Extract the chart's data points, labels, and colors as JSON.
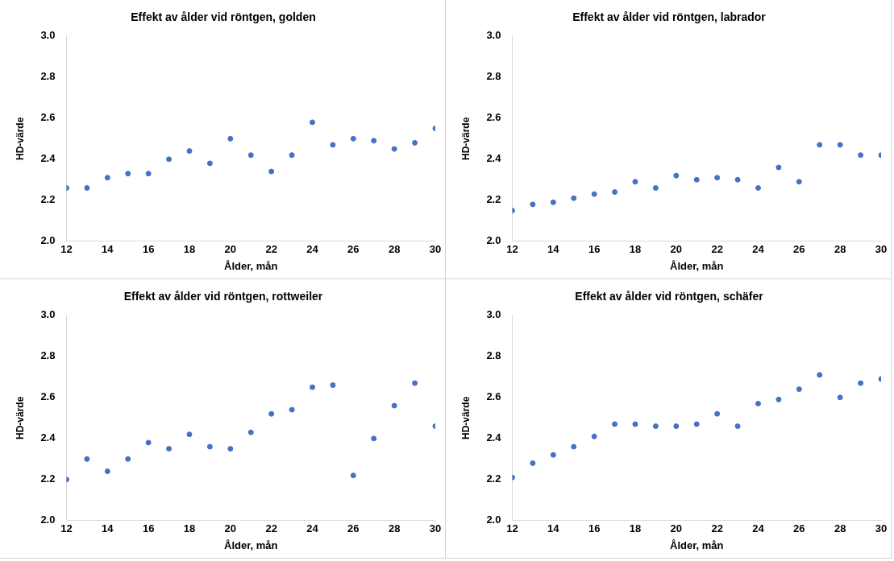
{
  "chart_data": [
    {
      "type": "scatter",
      "title": "Effekt av ålder vid röntgen, golden",
      "xlabel": "Ålder, mån",
      "ylabel": "HD-värde",
      "x": [
        12,
        13,
        14,
        15,
        16,
        17,
        18,
        19,
        20,
        21,
        22,
        23,
        24,
        25,
        26,
        27,
        28,
        29,
        30
      ],
      "series": [
        {
          "color": "#4472c4",
          "values": [
            2.26,
            2.26,
            2.31,
            2.33,
            2.33,
            2.4,
            2.44,
            2.38,
            2.5,
            2.42,
            2.34,
            2.42,
            2.58,
            2.47,
            2.5,
            2.49,
            2.45,
            2.48,
            2.55
          ]
        }
      ],
      "xlim": [
        12,
        30
      ],
      "xticks": [
        12,
        14,
        16,
        18,
        20,
        22,
        24,
        26,
        28,
        30
      ],
      "ylim": [
        2.0,
        3.0
      ],
      "yticks": [
        {
          "value": 2,
          "label": "2.0"
        },
        {
          "value": 2.2,
          "label": "2.2"
        },
        {
          "value": 2.4,
          "label": "2.4"
        },
        {
          "value": 2.6,
          "label": "2.6"
        },
        {
          "value": 2.8,
          "label": "2.8"
        },
        {
          "value": 3,
          "label": "3.0"
        }
      ],
      "grid": false,
      "legend": false,
      "marker": "circle"
    },
    {
      "type": "scatter",
      "title": "Effekt av ålder vid röntgen, labrador",
      "xlabel": "Ålder, mån",
      "ylabel": "HD-värde",
      "x": [
        12,
        13,
        14,
        15,
        16,
        17,
        18,
        19,
        20,
        21,
        22,
        23,
        24,
        25,
        26,
        27,
        28,
        29,
        30
      ],
      "series": [
        {
          "color": "#4472c4",
          "values": [
            2.15,
            2.18,
            2.19,
            2.21,
            2.23,
            2.24,
            2.29,
            2.26,
            2.32,
            2.3,
            2.31,
            2.3,
            2.26,
            2.36,
            2.29,
            2.47,
            2.47,
            2.42,
            2.42
          ]
        }
      ],
      "xlim": [
        12,
        30
      ],
      "xticks": [
        12,
        14,
        16,
        18,
        20,
        22,
        24,
        26,
        28,
        30
      ],
      "ylim": [
        2.0,
        3.0
      ],
      "yticks": [
        {
          "value": 2,
          "label": "2.0"
        },
        {
          "value": 2.2,
          "label": "2.2"
        },
        {
          "value": 2.4,
          "label": "2.4"
        },
        {
          "value": 2.6,
          "label": "2.6"
        },
        {
          "value": 2.8,
          "label": "2.8"
        },
        {
          "value": 3,
          "label": "3.0"
        }
      ],
      "grid": false,
      "legend": false,
      "marker": "circle"
    },
    {
      "type": "scatter",
      "title": "Effekt av ålder vid röntgen, rottweiler",
      "xlabel": "Ålder, mån",
      "ylabel": "HD-värde",
      "x": [
        12,
        13,
        14,
        15,
        16,
        17,
        18,
        19,
        20,
        21,
        22,
        23,
        24,
        25,
        26,
        27,
        28,
        29,
        30
      ],
      "series": [
        {
          "color": "#4472c4",
          "values": [
            2.2,
            2.3,
            2.24,
            2.3,
            2.38,
            2.35,
            2.42,
            2.36,
            2.35,
            2.43,
            2.52,
            2.54,
            2.65,
            2.66,
            2.22,
            2.4,
            2.56,
            2.67,
            2.46
          ]
        }
      ],
      "xlim": [
        12,
        30
      ],
      "xticks": [
        12,
        14,
        16,
        18,
        20,
        22,
        24,
        26,
        28,
        30
      ],
      "ylim": [
        2.0,
        3.0
      ],
      "yticks": [
        {
          "value": 2,
          "label": "2.0"
        },
        {
          "value": 2.2,
          "label": "2.2"
        },
        {
          "value": 2.4,
          "label": "2.4"
        },
        {
          "value": 2.6,
          "label": "2.6"
        },
        {
          "value": 2.8,
          "label": "2.8"
        },
        {
          "value": 3,
          "label": "3.0"
        }
      ],
      "grid": false,
      "legend": false,
      "marker": "circle"
    },
    {
      "type": "scatter",
      "title": "Effekt av ålder vid röntgen, schäfer",
      "xlabel": "Ålder, mån",
      "ylabel": "HD-värde",
      "x": [
        12,
        13,
        14,
        15,
        16,
        17,
        18,
        19,
        20,
        21,
        22,
        23,
        24,
        25,
        26,
        27,
        28,
        29,
        30
      ],
      "series": [
        {
          "color": "#4472c4",
          "values": [
            2.21,
            2.28,
            2.32,
            2.36,
            2.41,
            2.47,
            2.47,
            2.46,
            2.46,
            2.47,
            2.52,
            2.46,
            2.57,
            2.59,
            2.64,
            2.71,
            2.6,
            2.67,
            2.69
          ]
        }
      ],
      "xlim": [
        12,
        30
      ],
      "xticks": [
        12,
        14,
        16,
        18,
        20,
        22,
        24,
        26,
        28,
        30
      ],
      "ylim": [
        2.0,
        3.0
      ],
      "yticks": [
        {
          "value": 2,
          "label": "2.0"
        },
        {
          "value": 2.2,
          "label": "2.2"
        },
        {
          "value": 2.4,
          "label": "2.4"
        },
        {
          "value": 2.6,
          "label": "2.6"
        },
        {
          "value": 2.8,
          "label": "2.8"
        },
        {
          "value": 3,
          "label": "3.0"
        }
      ],
      "grid": false,
      "legend": false,
      "marker": "circle"
    }
  ]
}
